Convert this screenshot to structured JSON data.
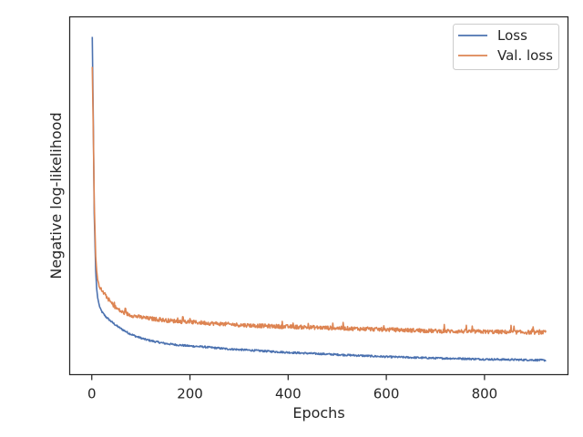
{
  "chart_data": {
    "type": "line",
    "title": "",
    "xlabel": "Epochs",
    "ylabel": "Negative log-likelihood",
    "xlim": [
      -45,
      970
    ],
    "ylim": [
      0,
      1
    ],
    "xticks": [
      0,
      200,
      400,
      600,
      800
    ],
    "yticks_shown": false,
    "grid": false,
    "legend_position": "top-right",
    "series": [
      {
        "name": "Loss",
        "color": "#4c72b0",
        "x": [
          1,
          3,
          5,
          8,
          10,
          12,
          15,
          18,
          22,
          26,
          30,
          40,
          50,
          60,
          75,
          90,
          110,
          130,
          150,
          175,
          200,
          225,
          250,
          275,
          300,
          350,
          400,
          450,
          500,
          550,
          600,
          650,
          700,
          750,
          800,
          850,
          900,
          925
        ],
        "y": [
          0.944,
          0.72,
          0.45,
          0.29,
          0.24,
          0.215,
          0.195,
          0.182,
          0.173,
          0.166,
          0.16,
          0.148,
          0.137,
          0.128,
          0.116,
          0.107,
          0.098,
          0.092,
          0.087,
          0.083,
          0.08,
          0.078,
          0.075,
          0.072,
          0.07,
          0.066,
          0.062,
          0.059,
          0.056,
          0.053,
          0.05,
          0.048,
          0.046,
          0.045,
          0.043,
          0.042,
          0.041,
          0.04
        ]
      },
      {
        "name": "Val. loss",
        "color": "#dd8452",
        "x": [
          1,
          3,
          5,
          8,
          10,
          12,
          15,
          18,
          22,
          26,
          30,
          40,
          50,
          60,
          75,
          90,
          110,
          130,
          150,
          175,
          200,
          225,
          250,
          275,
          300,
          350,
          400,
          450,
          500,
          550,
          600,
          650,
          700,
          750,
          800,
          850,
          900,
          925
        ],
        "y": [
          0.86,
          0.69,
          0.48,
          0.33,
          0.29,
          0.265,
          0.25,
          0.24,
          0.232,
          0.225,
          0.218,
          0.2,
          0.186,
          0.176,
          0.168,
          0.163,
          0.158,
          0.155,
          0.152,
          0.149,
          0.147,
          0.145,
          0.143,
          0.141,
          0.139,
          0.136,
          0.134,
          0.132,
          0.13,
          0.128,
          0.126,
          0.124,
          0.122,
          0.121,
          0.12,
          0.119,
          0.118,
          0.118
        ]
      }
    ]
  }
}
